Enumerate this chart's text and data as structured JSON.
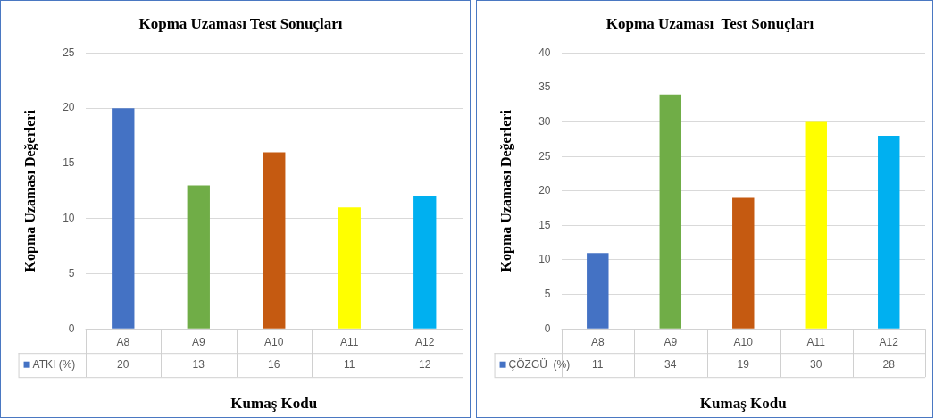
{
  "chart_data": [
    {
      "type": "bar",
      "title": "Kopma Uzaması Test Sonuçları",
      "xlabel": "Kumaş Kodu",
      "ylabel": "Kopma Uzaması Değerleri",
      "categories": [
        "A8",
        "A9",
        "A10",
        "A11",
        "A12"
      ],
      "series": [
        {
          "name": "ATKI (%)",
          "colors": [
            "#4472c4",
            "#70ad47",
            "#c55a11",
            "#ffff00",
            "#00b0f0"
          ],
          "values": [
            20,
            13,
            16,
            11,
            12
          ]
        }
      ],
      "ylim": [
        0,
        25
      ],
      "yticks": [
        0,
        5,
        10,
        15,
        20,
        25
      ],
      "grid": "y",
      "data_labels": true
    },
    {
      "type": "bar",
      "title": "Kopma Uzaması  Test Sonuçları",
      "xlabel": "Kumaş Kodu",
      "ylabel": "Kopma Uzaması Değerleri",
      "categories": [
        "A8",
        "A9",
        "A10",
        "A11",
        "A12"
      ],
      "series": [
        {
          "name": "ÇÖZGÜ  (%)",
          "colors": [
            "#4472c4",
            "#70ad47",
            "#c55a11",
            "#ffff00",
            "#00b0f0"
          ],
          "values": [
            11,
            34,
            19,
            30,
            28
          ]
        }
      ],
      "ylim": [
        0,
        40
      ],
      "yticks": [
        0,
        5,
        10,
        15,
        20,
        25,
        30,
        35,
        40
      ],
      "grid": "y",
      "data_labels": true
    }
  ]
}
